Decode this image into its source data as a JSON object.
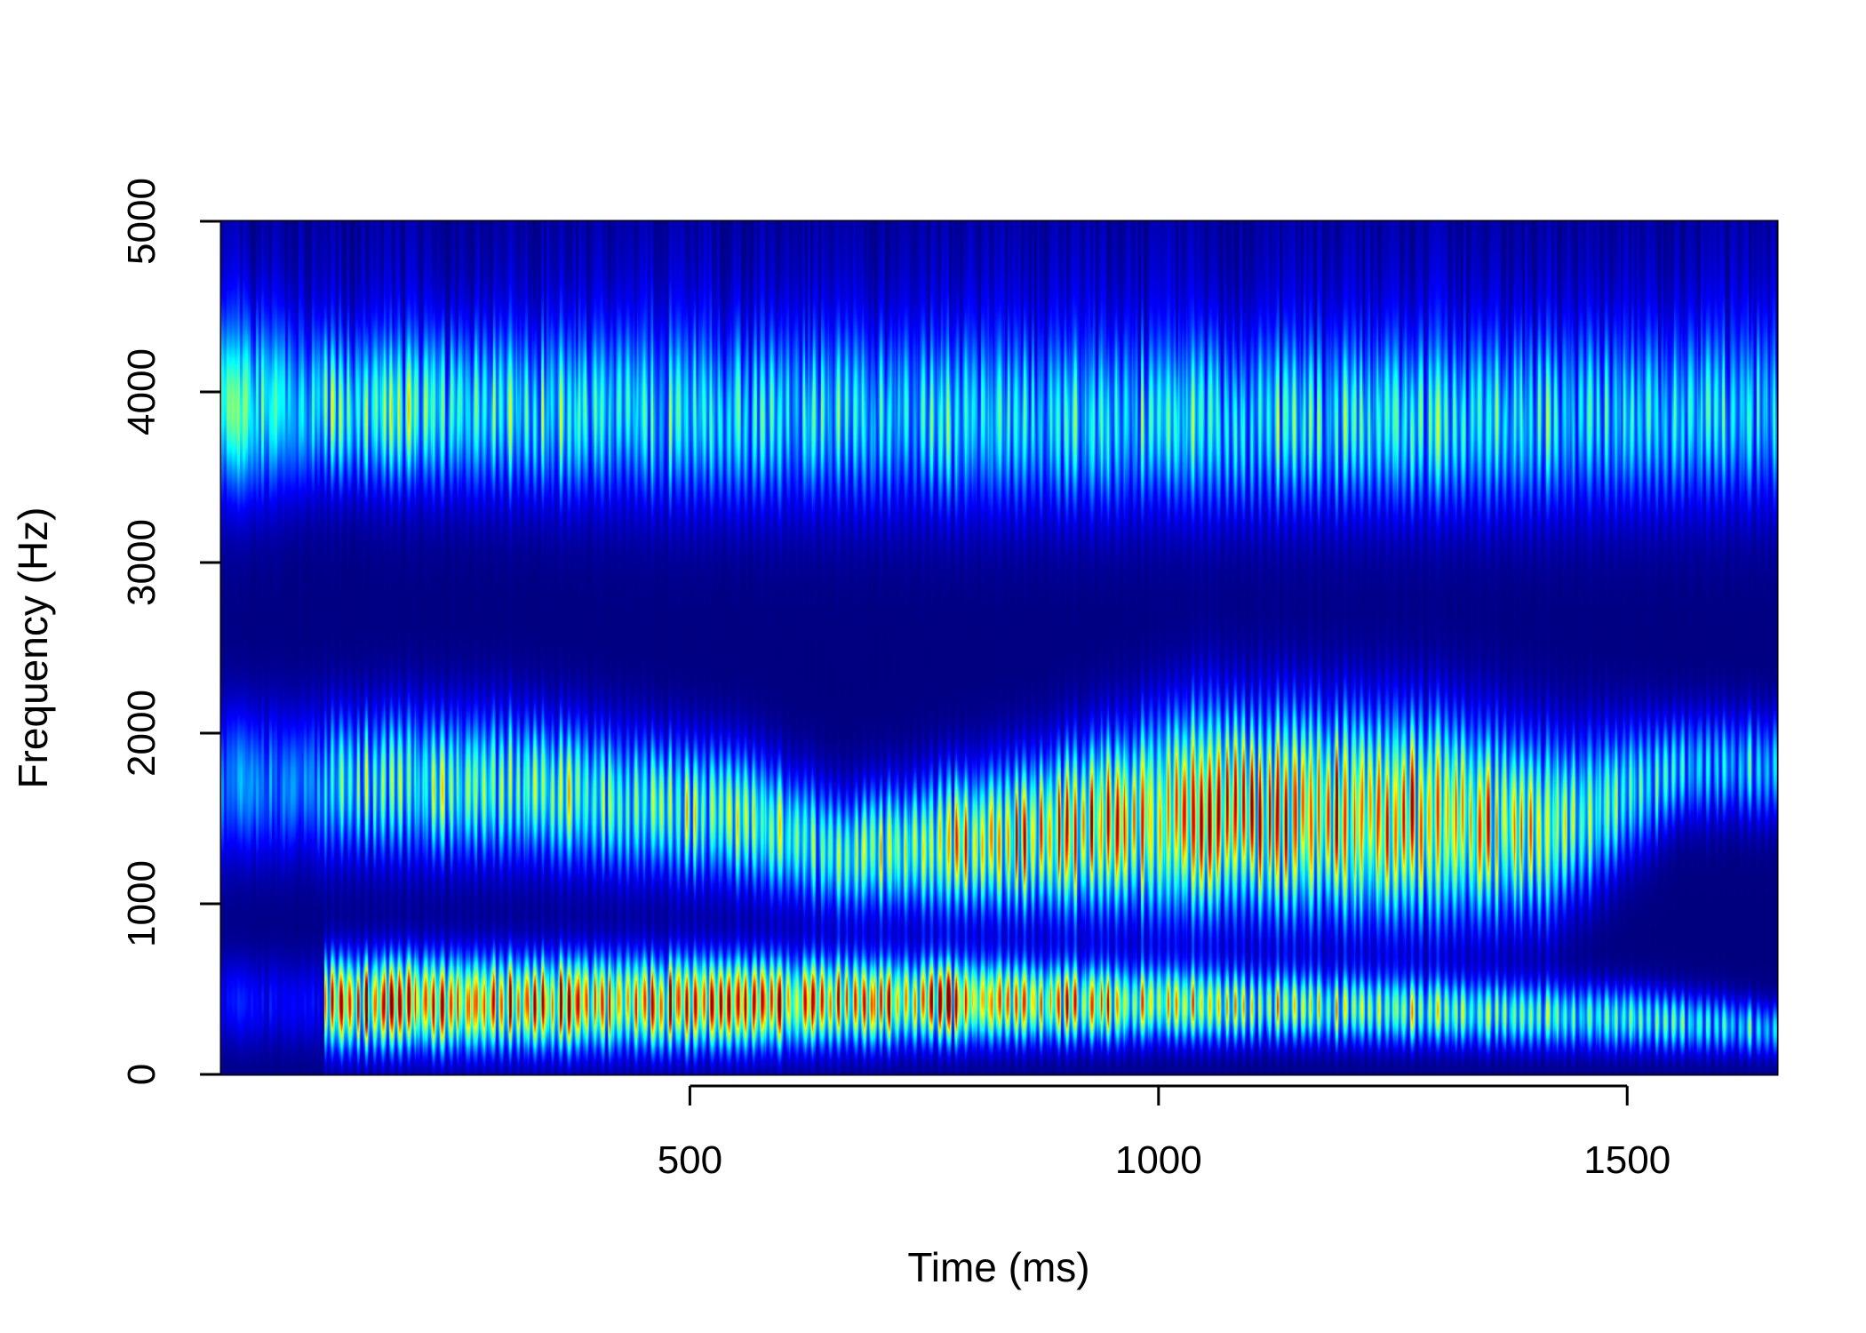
{
  "chart_data": {
    "type": "heatmap",
    "title": "",
    "xlabel": "Time (ms)",
    "ylabel": "Frequency (Hz)",
    "xlim": [
      0,
      1660
    ],
    "ylim": [
      0,
      5000
    ],
    "x_ticks": [
      500,
      1000,
      1500
    ],
    "y_ticks": [
      0,
      1000,
      2000,
      3000,
      4000,
      5000
    ],
    "colormap": [
      "#00007f",
      "#0000ff",
      "#007fff",
      "#00ffff",
      "#7fff7f",
      "#ffff00",
      "#ff7f00",
      "#ff0000",
      "#7f0000"
    ],
    "background_color": "#00007f",
    "formants": [
      {
        "t": [
          110,
          500,
          780,
          1100,
          1500,
          1660
        ],
        "f": [
          420,
          420,
          430,
          400,
          330,
          260
        ],
        "bw": [
          260,
          260,
          230,
          200,
          180,
          150
        ],
        "a": [
          0.92,
          0.95,
          0.92,
          0.62,
          0.52,
          0.4
        ]
      },
      {
        "t": [
          60,
          300,
          560,
          660,
          860,
          1050,
          1300,
          1420,
          1560
        ],
        "f": [
          1700,
          1700,
          1500,
          1300,
          1400,
          1550,
          1500,
          1450,
          1800
        ],
        "bw": [
          420,
          420,
          380,
          340,
          420,
          560,
          560,
          500,
          300
        ],
        "a": [
          0.45,
          0.58,
          0.6,
          0.55,
          0.82,
          0.9,
          0.86,
          0.65,
          0.4
        ]
      },
      {
        "t": [
          40,
          120,
          500,
          900,
          1300,
          1660
        ],
        "f": [
          3900,
          3900,
          3850,
          3800,
          3800,
          3850
        ],
        "bw": [
          500,
          420,
          500,
          500,
          500,
          500
        ],
        "a": [
          0.62,
          0.5,
          0.4,
          0.38,
          0.42,
          0.35
        ]
      }
    ],
    "voicing_onset_ms": 110,
    "pitch_period_ms": 9
  }
}
